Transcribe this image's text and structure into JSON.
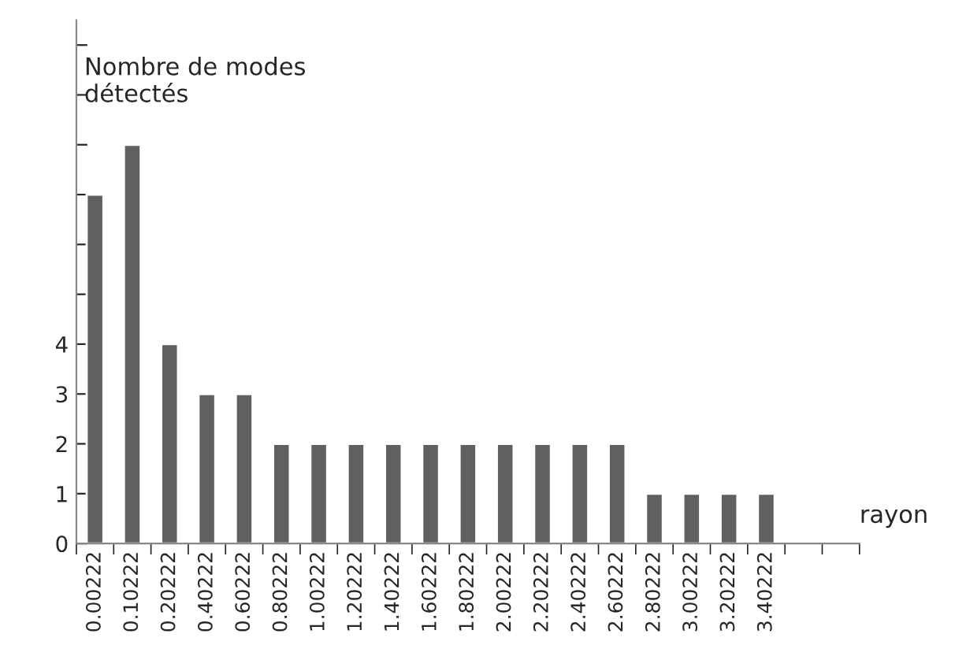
{
  "chart_data": {
    "type": "bar",
    "categories": [
      "0.00222",
      "0.10222",
      "0.20222",
      "0.40222",
      "0.60222",
      "0.80222",
      "1.00222",
      "1.20222",
      "1.40222",
      "1.60222",
      "1.80222",
      "2.00222",
      "2.20222",
      "2.40222",
      "2.60222",
      "2.80222",
      "3.00222",
      "3.20222",
      "3.40222",
      null,
      null
    ],
    "values": [
      7,
      8,
      4,
      3,
      3,
      2,
      2,
      2,
      2,
      2,
      2,
      2,
      2,
      2,
      2,
      1,
      1,
      1,
      1,
      null,
      null
    ],
    "color": "#606060",
    "xlabel": "rayon",
    "ylabel": "Nombre de modes\ndétectés",
    "ylim": [
      0,
      10.5
    ],
    "yticks": [
      0,
      1,
      2,
      3,
      4,
      {
        "value": 5,
        "label": null
      },
      {
        "value": 6,
        "label": null
      },
      {
        "value": 7,
        "label": null
      },
      {
        "value": 8,
        "label": null
      },
      {
        "value": 9,
        "label": null
      },
      {
        "value": 10,
        "label": null
      }
    ],
    "grid": false,
    "legend": false
  }
}
